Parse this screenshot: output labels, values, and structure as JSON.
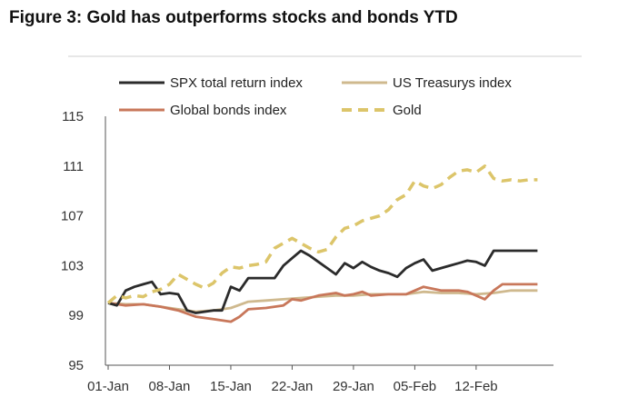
{
  "chart_data": {
    "type": "line",
    "title": "Figure 3: Gold has outperforms stocks and bonds YTD",
    "xlabel": "",
    "ylabel": "",
    "ylim": [
      95,
      115
    ],
    "yticks": [
      95,
      99,
      103,
      107,
      111,
      115
    ],
    "x_tick_labels": [
      "01-Jan",
      "08-Jan",
      "15-Jan",
      "22-Jan",
      "29-Jan",
      "05-Feb",
      "12-Feb"
    ],
    "x_tick_days": [
      0,
      7,
      14,
      21,
      28,
      35,
      42
    ],
    "x_range": [
      0,
      50
    ],
    "legend_placement": "top",
    "series": [
      {
        "name": "SPX total return index",
        "color": "#2b2b2b",
        "style": "solid",
        "points": [
          [
            0,
            100
          ],
          [
            1,
            99.8
          ],
          [
            2,
            101
          ],
          [
            3,
            101.3
          ],
          [
            4,
            101.5
          ],
          [
            5,
            101.7
          ],
          [
            6,
            100.7
          ],
          [
            7,
            100.8
          ],
          [
            8,
            100.7
          ],
          [
            9,
            99.4
          ],
          [
            10,
            99.2
          ],
          [
            11,
            99.3
          ],
          [
            12,
            99.4
          ],
          [
            13,
            99.4
          ],
          [
            14,
            101.3
          ],
          [
            15,
            101.0
          ],
          [
            16,
            102.0
          ],
          [
            17,
            102.0
          ],
          [
            18,
            102.0
          ],
          [
            19,
            102.0
          ],
          [
            20,
            103.0
          ],
          [
            21,
            103.6
          ],
          [
            22,
            104.2
          ],
          [
            23,
            103.8
          ],
          [
            24,
            103.3
          ],
          [
            25,
            102.8
          ],
          [
            26,
            102.3
          ],
          [
            27,
            103.2
          ],
          [
            28,
            102.8
          ],
          [
            29,
            103.3
          ],
          [
            30,
            102.9
          ],
          [
            31,
            102.6
          ],
          [
            32,
            102.4
          ],
          [
            33,
            102.1
          ],
          [
            34,
            102.8
          ],
          [
            35,
            103.2
          ],
          [
            36,
            103.5
          ],
          [
            37,
            102.6
          ],
          [
            38,
            102.8
          ],
          [
            39,
            103.0
          ],
          [
            40,
            103.2
          ],
          [
            41,
            103.4
          ],
          [
            42,
            103.3
          ],
          [
            43,
            103.0
          ],
          [
            44,
            104.2
          ],
          [
            45,
            104.2
          ],
          [
            46,
            104.2
          ],
          [
            47,
            104.2
          ],
          [
            48,
            104.2
          ],
          [
            49,
            104.2
          ]
        ]
      },
      {
        "name": "US Treasurys index",
        "color": "#cfb98e",
        "style": "solid",
        "points": [
          [
            0,
            100
          ],
          [
            2,
            99.9
          ],
          [
            4,
            99.9
          ],
          [
            6,
            99.7
          ],
          [
            8,
            99.5
          ],
          [
            10,
            99.3
          ],
          [
            12,
            99.4
          ],
          [
            14,
            99.6
          ],
          [
            16,
            100.1
          ],
          [
            18,
            100.2
          ],
          [
            20,
            100.3
          ],
          [
            22,
            100.4
          ],
          [
            24,
            100.5
          ],
          [
            26,
            100.6
          ],
          [
            28,
            100.6
          ],
          [
            30,
            100.7
          ],
          [
            32,
            100.7
          ],
          [
            34,
            100.7
          ],
          [
            36,
            100.9
          ],
          [
            38,
            100.8
          ],
          [
            40,
            100.8
          ],
          [
            42,
            100.7
          ],
          [
            44,
            100.8
          ],
          [
            46,
            101.0
          ],
          [
            48,
            101.0
          ],
          [
            49,
            101.0
          ]
        ]
      },
      {
        "name": "Global bonds index",
        "color": "#c8775a",
        "style": "solid",
        "points": [
          [
            0,
            100
          ],
          [
            2,
            99.8
          ],
          [
            4,
            99.9
          ],
          [
            6,
            99.7
          ],
          [
            8,
            99.4
          ],
          [
            10,
            98.9
          ],
          [
            12,
            98.7
          ],
          [
            14,
            98.5
          ],
          [
            15,
            98.9
          ],
          [
            16,
            99.5
          ],
          [
            18,
            99.6
          ],
          [
            20,
            99.8
          ],
          [
            21,
            100.3
          ],
          [
            22,
            100.2
          ],
          [
            24,
            100.6
          ],
          [
            26,
            100.8
          ],
          [
            27,
            100.6
          ],
          [
            28,
            100.7
          ],
          [
            29,
            100.9
          ],
          [
            30,
            100.6
          ],
          [
            32,
            100.7
          ],
          [
            34,
            100.7
          ],
          [
            36,
            101.3
          ],
          [
            38,
            101.0
          ],
          [
            40,
            101.0
          ],
          [
            41,
            100.9
          ],
          [
            42,
            100.6
          ],
          [
            43,
            100.3
          ],
          [
            44,
            101.0
          ],
          [
            45,
            101.5
          ],
          [
            46,
            101.5
          ],
          [
            49,
            101.5
          ]
        ]
      },
      {
        "name": "Gold",
        "color": "#dcc56a",
        "style": "dashed",
        "points": [
          [
            0,
            100
          ],
          [
            1,
            100.6
          ],
          [
            2,
            100.4
          ],
          [
            3,
            100.6
          ],
          [
            4,
            100.5
          ],
          [
            5,
            100.9
          ],
          [
            6,
            101.1
          ],
          [
            7,
            101.5
          ],
          [
            8,
            102.3
          ],
          [
            9,
            101.9
          ],
          [
            10,
            101.5
          ],
          [
            11,
            101.2
          ],
          [
            12,
            101.6
          ],
          [
            13,
            102.4
          ],
          [
            14,
            102.9
          ],
          [
            15,
            102.8
          ],
          [
            16,
            103.0
          ],
          [
            17,
            103.1
          ],
          [
            18,
            103.3
          ],
          [
            19,
            104.4
          ],
          [
            20,
            104.8
          ],
          [
            21,
            105.2
          ],
          [
            22,
            104.8
          ],
          [
            23,
            104.4
          ],
          [
            24,
            104.1
          ],
          [
            25,
            104.3
          ],
          [
            26,
            105.3
          ],
          [
            27,
            106.0
          ],
          [
            28,
            106.2
          ],
          [
            29,
            106.6
          ],
          [
            30,
            106.8
          ],
          [
            31,
            107.0
          ],
          [
            32,
            107.5
          ],
          [
            33,
            108.3
          ],
          [
            34,
            108.7
          ],
          [
            35,
            109.8
          ],
          [
            36,
            109.4
          ],
          [
            37,
            109.2
          ],
          [
            38,
            109.5
          ],
          [
            39,
            110.1
          ],
          [
            40,
            110.6
          ],
          [
            41,
            110.7
          ],
          [
            42,
            110.5
          ],
          [
            43,
            111.0
          ],
          [
            44,
            110.0
          ],
          [
            45,
            109.8
          ],
          [
            46,
            109.9
          ],
          [
            47,
            109.8
          ],
          [
            48,
            109.9
          ],
          [
            49,
            109.9
          ]
        ]
      }
    ]
  }
}
